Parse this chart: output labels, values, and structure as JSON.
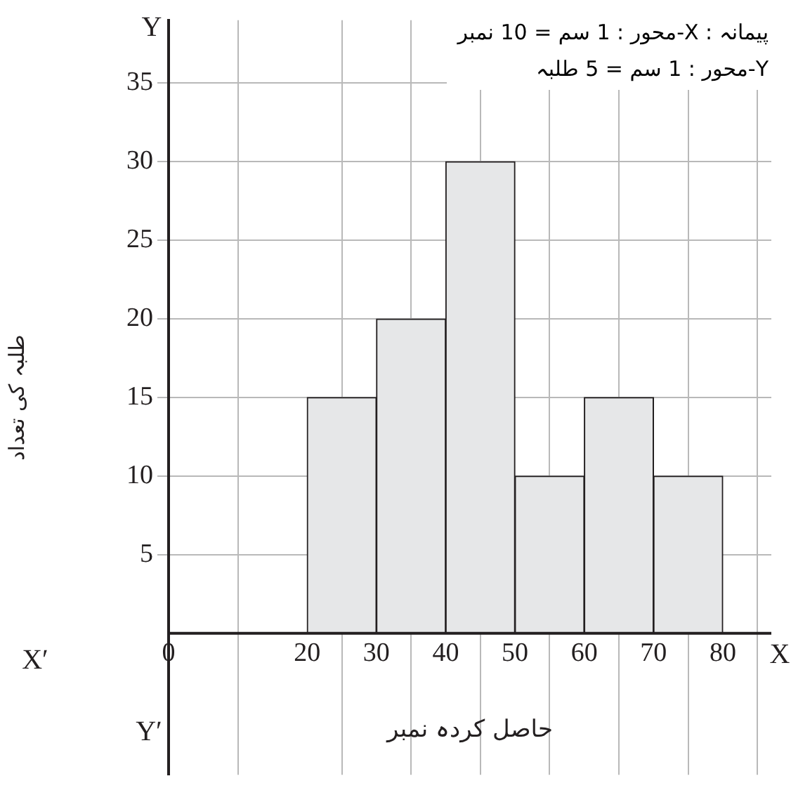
{
  "chart_data": {
    "type": "histogram",
    "xlabel": "حاصل کردہ نمبر",
    "ylabel": "طلبہ کی تعداد",
    "bins": [
      20,
      30,
      40,
      50,
      60,
      70,
      80
    ],
    "values": [
      15,
      20,
      30,
      10,
      15,
      10
    ],
    "color": "#e6e7e8",
    "xlim": [
      0,
      87
    ],
    "xticks": [
      0,
      20,
      30,
      40,
      50,
      60,
      70,
      80
    ],
    "ylim": [
      -9,
      39
    ],
    "yticks": [
      5,
      10,
      15,
      20,
      25,
      30,
      35
    ],
    "grid": true,
    "legend": false,
    "annotations": [
      "پیمانہ : X-محور : 1 سم = 10 نمبر",
      "Y-محور : 1 سم = 5 طلبہ",
      "X",
      "X′",
      "Y",
      "Y′"
    ]
  }
}
